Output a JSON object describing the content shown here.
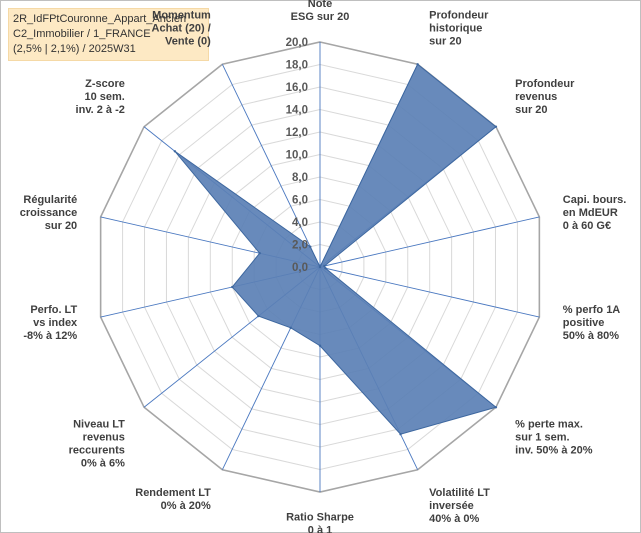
{
  "header": {
    "line1": "2R_IdFPtCouronne_Appart_Ancien",
    "line2": "C2_Immobilier / 1_FRANCE",
    "line3": "(2,5% | 2,1%) / 2025W31"
  },
  "colors": {
    "fill": "#5b80b5",
    "stroke": "#3d679f",
    "grid": "#d9d9d9",
    "spoke": "#4a78c0",
    "title_bg": "#fde9c4"
  },
  "chart_data": {
    "type": "radar",
    "rmin": 0,
    "rmax": 20,
    "tick_step": 2,
    "tick_labels": [
      "0,0",
      "2,0",
      "4,0",
      "6,0",
      "8,0",
      "10,0",
      "12,0",
      "14,0",
      "16,0",
      "18,0",
      "20,0"
    ],
    "grid": true,
    "axes": [
      {
        "label": [
          "Note",
          "ESG sur 20"
        ],
        "value": 0
      },
      {
        "label": [
          "Profondeur",
          "historique",
          "sur 20"
        ],
        "value": 20
      },
      {
        "label": [
          "Profondeur",
          "revenus",
          "sur 20"
        ],
        "value": 20
      },
      {
        "label": [
          "Capi. bours.",
          "en MdEUR",
          "0 à 60 G€"
        ],
        "value": 0.4
      },
      {
        "label": [
          "% perfo 1A",
          "positive",
          "50% à 80%"
        ],
        "value": 0.5
      },
      {
        "label": [
          "% perte max.",
          "sur 1 sem.",
          "inv. 50% à 20%"
        ],
        "value": 20
      },
      {
        "label": [
          "Volatilité LT",
          "inversée",
          "40% à 0%"
        ],
        "value": 16.5
      },
      {
        "label": [
          "Ratio Sharpe",
          "0 à 1"
        ],
        "value": 7
      },
      {
        "label": [
          "Rendement LT",
          "0% à 20%"
        ],
        "value": 6
      },
      {
        "label": [
          "Niveau LT",
          "revenus",
          "reccurents",
          "0% à 6%"
        ],
        "value": 7
      },
      {
        "label": [
          "Perfo. LT",
          "vs index",
          "-8% à 12%"
        ],
        "value": 8
      },
      {
        "label": [
          "Régularité",
          "croissance",
          "sur 20"
        ],
        "value": 5.5
      },
      {
        "label": [
          "Z-score",
          "10 sem.",
          "inv. 2 à -2"
        ],
        "value": 16.5
      },
      {
        "label": [
          "Momentum",
          "Achat (20) /",
          "Vente (0)"
        ],
        "value": 2
      }
    ]
  }
}
